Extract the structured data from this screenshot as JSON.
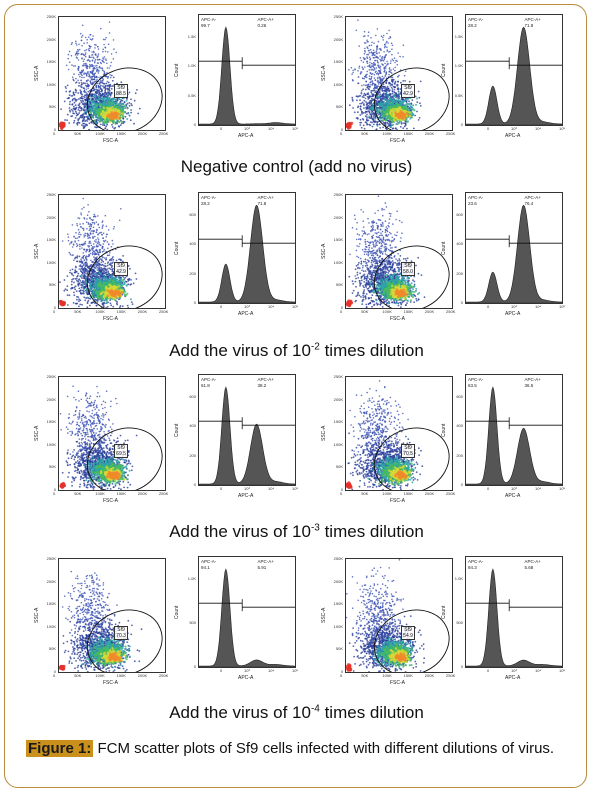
{
  "figure": {
    "label": "Figure 1:",
    "caption": "FCM scatter plots of Sf9 cells infected with different dilutions of virus."
  },
  "axis_labels": {
    "scatter_x": "FSC-A",
    "scatter_y": "SSC-A",
    "hist_x": "APC-A",
    "hist_y": "Count"
  },
  "gate_name": "Sf9",
  "rows": [
    {
      "caption_pre": "Negative control (add no virus)",
      "caption_sup": "",
      "caption_post": "",
      "panels": [
        {
          "gate_pct": "88.5",
          "apc_neg_label": "APC-A-",
          "apc_neg": "99.7",
          "apc_pos_label": "APC-A+",
          "apc_pos": "0.26"
        },
        {
          "gate_pct": "42.9",
          "apc_neg_label": "APC-A-",
          "apc_neg": "28.2",
          "apc_pos_label": "APC-A+",
          "apc_pos": "71.8"
        }
      ]
    },
    {
      "caption_pre": "Add the virus of 10",
      "caption_sup": "-2",
      "caption_post": " times dilution",
      "panels": [
        {
          "gate_pct": "42.9",
          "apc_neg_label": "APC-A-",
          "apc_neg": "28.2",
          "apc_pos_label": "APC-A+",
          "apc_pos": "71.8"
        },
        {
          "gate_pct": "58.0",
          "apc_neg_label": "APC-A-",
          "apc_neg": "23.6",
          "apc_pos_label": "APC-A+",
          "apc_pos": "76.4"
        }
      ]
    },
    {
      "caption_pre": "Add the virus of 10",
      "caption_sup": "-3",
      "caption_post": " times dilution",
      "panels": [
        {
          "gate_pct": "69.5",
          "apc_neg_label": "APC-A-",
          "apc_neg": "61.8",
          "apc_pos_label": "APC-A+",
          "apc_pos": "38.2"
        },
        {
          "gate_pct": "70.5",
          "apc_neg_label": "APC-A-",
          "apc_neg": "63.5",
          "apc_pos_label": "APC-A+",
          "apc_pos": "36.5"
        }
      ]
    },
    {
      "caption_pre": "Add the virus of 10",
      "caption_sup": "-4",
      "caption_post": " times dilution",
      "panels": [
        {
          "gate_pct": "70.3",
          "apc_neg_label": "APC-A-",
          "apc_neg": "94.1",
          "apc_pos_label": "APC-A+",
          "apc_pos": "5.91"
        },
        {
          "gate_pct": "54.9",
          "apc_neg_label": "APC-A-",
          "apc_neg": "94.3",
          "apc_pos_label": "APC-A+",
          "apc_pos": "5.68"
        }
      ]
    }
  ],
  "ticks": {
    "scatter_x": [
      "0",
      "50K",
      "100K",
      "150K",
      "200K",
      "250K"
    ],
    "scatter_y": [
      "0",
      "50K",
      "100K",
      "150K",
      "200K",
      "250K"
    ],
    "hist_x": [
      "0",
      "10³",
      "10⁴",
      "10⁵"
    ],
    "hist_y_rows": [
      [
        "0",
        "0.5K",
        "1.0K",
        "1.5K"
      ],
      [
        "0",
        "200",
        "400",
        "600"
      ],
      [
        "0",
        "200",
        "400",
        "600"
      ],
      [
        "0",
        "500",
        "1.0K"
      ]
    ]
  },
  "colors": {
    "frame": "#b78a3c",
    "figlabel_bg": "#c9901c",
    "hist_fill": "#555555"
  }
}
